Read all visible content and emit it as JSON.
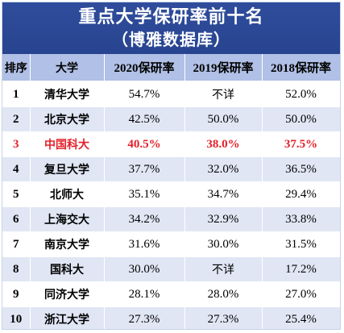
{
  "title": {
    "line1": "重点大学保研率前十名",
    "line2": "（博雅数据库）"
  },
  "headers": [
    "排序",
    "大学",
    "2020保研率",
    "2019保研率",
    "2018保研率"
  ],
  "highlight_color": "#e4202a",
  "header_bg": "#b0c0e6",
  "title_bg": "#2f4d9c",
  "rows": [
    {
      "rank": "1",
      "university": "清华大学",
      "y2020": "54.7%",
      "y2019": "不详",
      "y2018": "52.0%"
    },
    {
      "rank": "2",
      "university": "北京大学",
      "y2020": "42.5%",
      "y2019": "50.0%",
      "y2018": "50.0%"
    },
    {
      "rank": "3",
      "university": "中国科大",
      "y2020": "40.5%",
      "y2019": "38.0%",
      "y2018": "37.5%"
    },
    {
      "rank": "4",
      "university": "复旦大学",
      "y2020": "37.7%",
      "y2019": "32.0%",
      "y2018": "36.5%"
    },
    {
      "rank": "5",
      "university": "北师大",
      "y2020": "35.1%",
      "y2019": "34.7%",
      "y2018": "29.4%"
    },
    {
      "rank": "6",
      "university": "上海交大",
      "y2020": "34.2%",
      "y2019": "32.9%",
      "y2018": "33.8%"
    },
    {
      "rank": "7",
      "university": "南京大学",
      "y2020": "31.6%",
      "y2019": "30.0%",
      "y2018": "31.5%"
    },
    {
      "rank": "8",
      "university": "国科大",
      "y2020": "30.0%",
      "y2019": "不详",
      "y2018": "17.2%"
    },
    {
      "rank": "9",
      "university": "同济大学",
      "y2020": "28.1%",
      "y2019": "28.0%",
      "y2018": "27.0%"
    },
    {
      "rank": "10",
      "university": "浙江大学",
      "y2020": "27.3%",
      "y2019": "27.3%",
      "y2018": "25.4%"
    }
  ]
}
